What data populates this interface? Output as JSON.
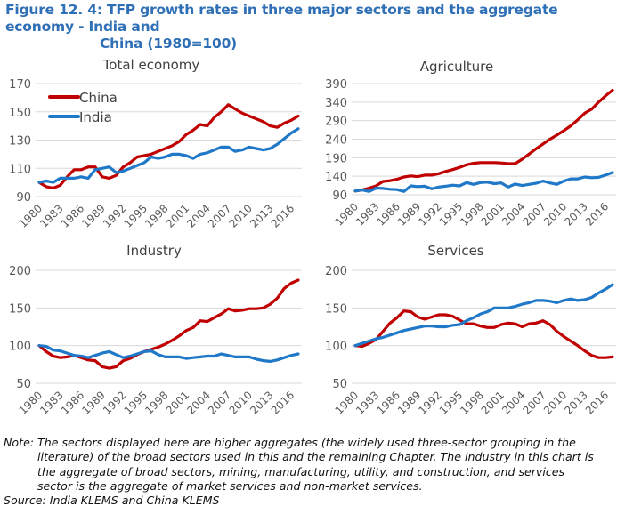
{
  "figure": {
    "title_line1": "Figure 12. 4: TFP growth rates in three major sectors and the aggregate economy - India and",
    "title_line2": "China (1980=100)",
    "title_color": "#2e6fb5",
    "note_line1": "Note: The sectors displayed here are higher aggregates (the widely used three-sector grouping in the",
    "note_line2": "literature) of the broad sectors used in this and the remaining Chapter. The industry in this chart is",
    "note_line3": "the aggregate of broad sectors, mining, manufacturing, utility, and construction, and services",
    "note_line4": "sector is the aggregate of market services and non-market services.",
    "source": "Source: India KLEMS and China KLEMS"
  },
  "chart_data": [
    {
      "type": "line",
      "title": "Total economy",
      "xlabel": "",
      "ylabel": "",
      "ylim": [
        90,
        170
      ],
      "yticks": [
        90,
        110,
        130,
        150,
        170
      ],
      "xticks": [
        "1980",
        "1983",
        "1986",
        "1989",
        "1992",
        "1995",
        "1998",
        "2001",
        "2004",
        "2007",
        "2010",
        "2013",
        "2016"
      ],
      "x_start": 1980,
      "x_end": 2017,
      "grid": true,
      "legend": "top-left",
      "series": [
        {
          "name": "China",
          "color": "#c00000",
          "values": [
            100,
            97,
            96,
            98,
            104,
            109,
            109,
            111,
            111,
            104,
            103,
            105,
            111,
            114,
            118,
            119,
            120,
            122,
            124,
            126,
            129,
            134,
            137,
            141,
            140,
            146,
            150,
            155,
            152,
            149,
            147,
            145,
            143,
            140,
            139,
            142,
            144,
            147
          ]
        },
        {
          "name": "India",
          "color": "#1f78c8",
          "values": [
            100,
            101,
            100,
            103,
            103,
            103,
            104,
            103,
            109,
            110,
            111,
            107,
            108,
            110,
            112,
            114,
            118,
            117,
            118,
            120,
            120,
            119,
            117,
            120,
            121,
            123,
            125,
            125,
            122,
            123,
            125,
            124,
            123,
            124,
            127,
            131,
            135,
            138
          ]
        }
      ]
    },
    {
      "type": "line",
      "title": "Agriculture",
      "xlabel": "",
      "ylabel": "",
      "ylim": [
        90,
        390
      ],
      "yticks": [
        90,
        140,
        190,
        240,
        290,
        340,
        390
      ],
      "xticks": [
        "1980",
        "1983",
        "1986",
        "1989",
        "1992",
        "1995",
        "1998",
        "2001",
        "2004",
        "2007",
        "2010",
        "2013",
        "2016"
      ],
      "x_start": 1980,
      "x_end": 2017,
      "grid": true,
      "legend": "none",
      "series": [
        {
          "name": "China",
          "color": "#c00000",
          "values": [
            100,
            103,
            108,
            114,
            126,
            128,
            132,
            138,
            141,
            139,
            143,
            143,
            147,
            153,
            158,
            164,
            171,
            175,
            177,
            177,
            177,
            176,
            174,
            174,
            186,
            200,
            214,
            227,
            240,
            251,
            263,
            276,
            292,
            310,
            321,
            340,
            357,
            372
          ]
        },
        {
          "name": "India",
          "color": "#1f78c8",
          "values": [
            100,
            103,
            99,
            108,
            107,
            105,
            104,
            99,
            114,
            112,
            113,
            106,
            111,
            113,
            116,
            114,
            123,
            118,
            123,
            124,
            120,
            122,
            111,
            119,
            115,
            118,
            121,
            127,
            122,
            118,
            127,
            133,
            133,
            138,
            136,
            137,
            143,
            150
          ]
        }
      ]
    },
    {
      "type": "line",
      "title": "Industry",
      "xlabel": "",
      "ylabel": "",
      "ylim": [
        50,
        200
      ],
      "yticks": [
        50,
        100,
        150,
        200
      ],
      "xticks": [
        "1980",
        "1983",
        "1986",
        "1989",
        "1992",
        "1995",
        "1998",
        "2001",
        "2004",
        "2007",
        "2010",
        "2013",
        "2016"
      ],
      "x_start": 1980,
      "x_end": 2017,
      "grid": true,
      "legend": "none",
      "series": [
        {
          "name": "China",
          "color": "#c00000",
          "values": [
            100,
            92,
            86,
            84,
            85,
            87,
            84,
            81,
            80,
            72,
            70,
            72,
            80,
            83,
            88,
            92,
            95,
            98,
            102,
            107,
            113,
            120,
            124,
            133,
            132,
            137,
            142,
            149,
            146,
            147,
            149,
            149,
            150,
            155,
            163,
            176,
            183,
            187
          ]
        },
        {
          "name": "India",
          "color": "#1f78c8",
          "values": [
            100,
            99,
            94,
            93,
            90,
            87,
            86,
            84,
            87,
            90,
            92,
            88,
            84,
            86,
            89,
            92,
            93,
            88,
            85,
            85,
            85,
            83,
            84,
            85,
            86,
            86,
            89,
            87,
            85,
            85,
            85,
            82,
            80,
            79,
            81,
            84,
            87,
            89
          ]
        }
      ]
    },
    {
      "type": "line",
      "title": "Services",
      "xlabel": "",
      "ylabel": "",
      "ylim": [
        50,
        200
      ],
      "yticks": [
        50,
        100,
        150,
        200
      ],
      "xticks": [
        "1980",
        "1983",
        "1986",
        "1989",
        "1992",
        "1995",
        "1998",
        "2001",
        "2004",
        "2007",
        "2010",
        "2013",
        "2016"
      ],
      "x_start": 1980,
      "x_end": 2017,
      "grid": true,
      "legend": "none",
      "series": [
        {
          "name": "China",
          "color": "#c00000",
          "values": [
            100,
            99,
            103,
            108,
            119,
            130,
            137,
            146,
            145,
            138,
            135,
            138,
            141,
            141,
            139,
            134,
            129,
            129,
            126,
            124,
            124,
            128,
            130,
            129,
            125,
            129,
            130,
            133,
            128,
            119,
            112,
            106,
            100,
            93,
            87,
            84,
            84,
            85
          ]
        },
        {
          "name": "India",
          "color": "#1f78c8",
          "values": [
            100,
            103,
            106,
            109,
            111,
            114,
            117,
            120,
            122,
            124,
            126,
            126,
            125,
            125,
            127,
            128,
            133,
            137,
            142,
            145,
            150,
            150,
            150,
            152,
            155,
            157,
            160,
            160,
            159,
            157,
            160,
            162,
            160,
            161,
            164,
            170,
            175,
            181
          ]
        }
      ]
    }
  ]
}
